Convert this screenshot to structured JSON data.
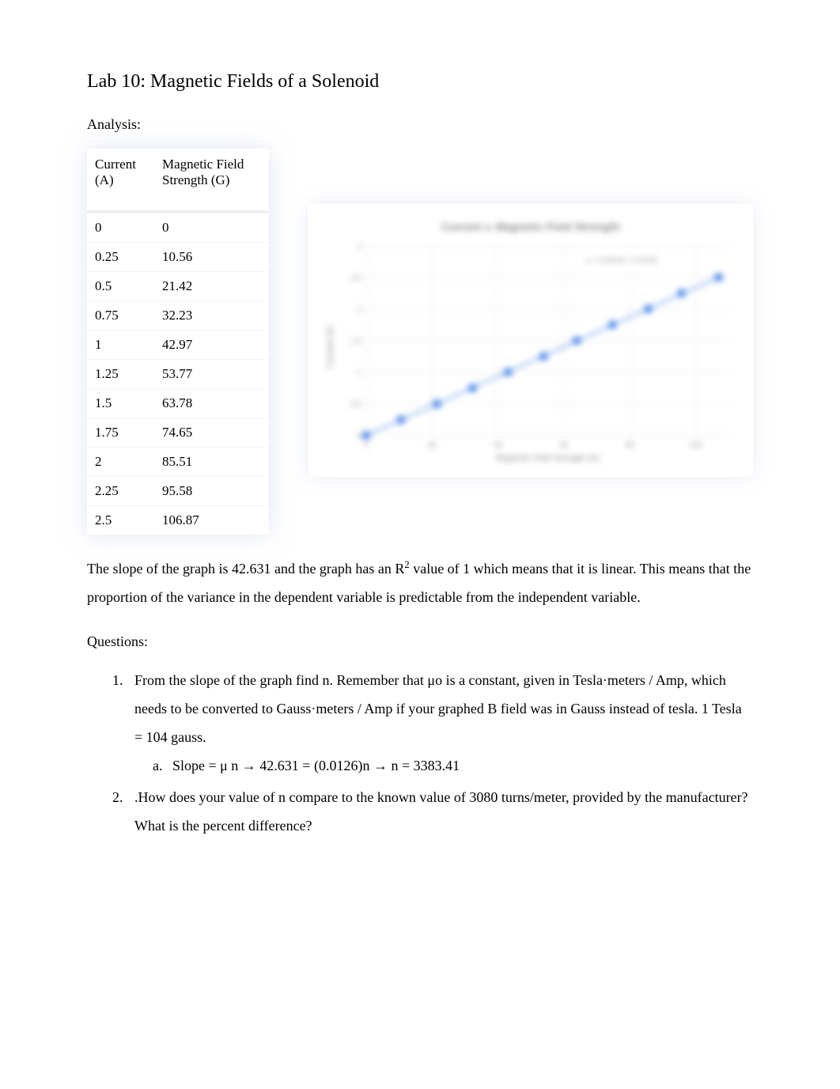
{
  "title": "Lab 10: Magnetic Fields of a Solenoid",
  "analysis_heading": "Analysis:",
  "table": {
    "col1_header": "Current (A)",
    "col2_header": "Magnetic Field Strength (G)",
    "rows": [
      [
        "0",
        "0"
      ],
      [
        "0.25",
        "10.56"
      ],
      [
        "0.5",
        "21.42"
      ],
      [
        "0.75",
        "32.23"
      ],
      [
        "1",
        "42.97"
      ],
      [
        "1.25",
        "53.77"
      ],
      [
        "1.5",
        "63.78"
      ],
      [
        "1.75",
        "74.65"
      ],
      [
        "2",
        "85.51"
      ],
      [
        "2.25",
        "95.58"
      ],
      [
        "2.5",
        "106.87"
      ]
    ],
    "header_bg": "#ffffff",
    "cell_bg": "#ffffff",
    "border_color": "#f0f0f0",
    "font_size": 17
  },
  "chart": {
    "type": "scatter-with-trendline",
    "title": "Current v. Magnetic Field Strength",
    "title_fontsize": 12,
    "xlabel": "Magnetic Field Strength (G)",
    "ylabel": "Current (A)",
    "label_fontsize": 9,
    "x_values": [
      0,
      10.56,
      21.42,
      32.23,
      42.97,
      53.77,
      63.78,
      74.65,
      85.51,
      95.58,
      106.87
    ],
    "y_values": [
      0,
      0.25,
      0.5,
      0.75,
      1,
      1.25,
      1.5,
      1.75,
      2,
      2.25,
      2.5
    ],
    "xlim": [
      0,
      110
    ],
    "ylim": [
      0,
      3
    ],
    "xtick_step": 20,
    "ytick_step": 0.5,
    "marker_color": "#4a86e8",
    "marker_size": 5,
    "trendline_color": "#4a86e8",
    "trendline_width": 1.5,
    "trendline_label": "y = 0.0234x + 0.0016",
    "background_color": "#ffffff",
    "grid_color": "#e8e8e8",
    "aspect_ratio": 1.7,
    "blur": true
  },
  "slope_paragraph": {
    "pre": "The slope of the graph is 42.631 and the graph has an R",
    "sup": "2",
    "post": " value of 1 which means that it is linear. This means that the proportion of the variance in the dependent variable is predictable from the independent variable."
  },
  "questions_heading": "Questions:",
  "questions": {
    "q1": " From the slope of the graph find n. Remember that μo is a constant, given in Tesla·meters / Amp, which needs to be converted to Gauss·meters / Amp if your graphed B field was in Gauss instead of tesla. 1 Tesla = 104 gauss.",
    "q1a": "Slope =      μ   n     →     42.631 = (0.0126)n       →     n = 3383.41",
    "q2": ".How does your value of n compare to the known value of 3080 turns/meter, provided by the manufacturer? What is the percent difference?"
  },
  "colors": {
    "text": "#000000",
    "background": "#ffffff",
    "shadow": "rgba(200,210,230,0.6)"
  }
}
